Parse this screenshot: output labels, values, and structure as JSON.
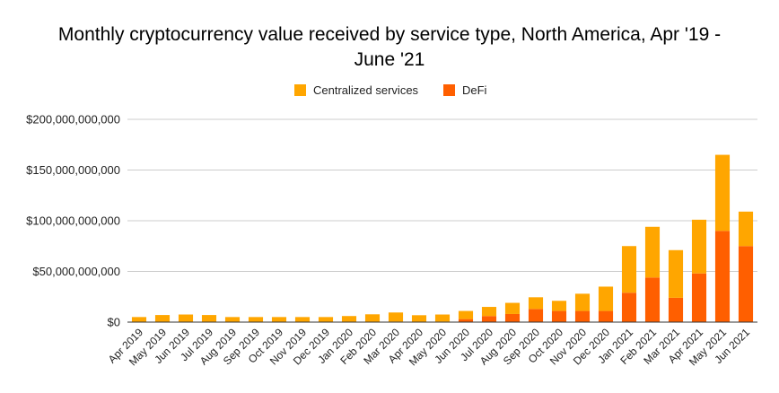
{
  "chart_data": {
    "type": "bar",
    "stacked": true,
    "title_lines": [
      "Monthly cryptocurrency value received by service type, North America, Apr '19 -",
      "June '21"
    ],
    "xlabel": "",
    "ylabel": "",
    "ylim": [
      0,
      200000000000
    ],
    "y_ticks": [
      0,
      50000000000,
      100000000000,
      150000000000,
      200000000000
    ],
    "y_tick_labels": [
      "$0",
      "$50,000,000,000",
      "$100,000,000,000",
      "$150,000,000,000",
      "$200,000,000,000"
    ],
    "grid": true,
    "legend_position": "top",
    "categories": [
      "Apr 2019",
      "May 2019",
      "Jun 2019",
      "Jul 2019",
      "Aug 2019",
      "Sep 2019",
      "Oct 2019",
      "Nov 2019",
      "Dec 2019",
      "Jan 2020",
      "Feb 2020",
      "Mar 2020",
      "Apr 2020",
      "May 2020",
      "Jun 2020",
      "Jul 2020",
      "Aug 2020",
      "Sep 2020",
      "Oct 2020",
      "Nov 2020",
      "Dec 2020",
      "Jan 2021",
      "Feb 2021",
      "Mar 2021",
      "Apr 2021",
      "May 2021",
      "Jun 2021"
    ],
    "series": [
      {
        "name": "DeFi",
        "color": "#ff5f00",
        "values": [
          0,
          0,
          0,
          0,
          0,
          0,
          0,
          0,
          0,
          0,
          200000000,
          500000000,
          300000000,
          500000000,
          3000000000,
          6000000000,
          8000000000,
          13000000000,
          11000000000,
          11000000000,
          11000000000,
          29000000000,
          44000000000,
          24000000000,
          48000000000,
          90000000000,
          75000000000
        ]
      },
      {
        "name": "Centralized services",
        "color": "#ffa600",
        "values": [
          5000000000,
          7000000000,
          7500000000,
          7000000000,
          5000000000,
          5000000000,
          5000000000,
          5000000000,
          5000000000,
          6000000000,
          7500000000,
          9000000000,
          6500000000,
          7000000000,
          8000000000,
          9000000000,
          11000000000,
          11500000000,
          10000000000,
          17000000000,
          24000000000,
          46000000000,
          50000000000,
          47000000000,
          53000000000,
          75000000000,
          34000000000
        ]
      }
    ],
    "legend": [
      {
        "name": "Centralized services",
        "color": "#ffa600"
      },
      {
        "name": "DeFi",
        "color": "#ff5f00"
      }
    ]
  }
}
